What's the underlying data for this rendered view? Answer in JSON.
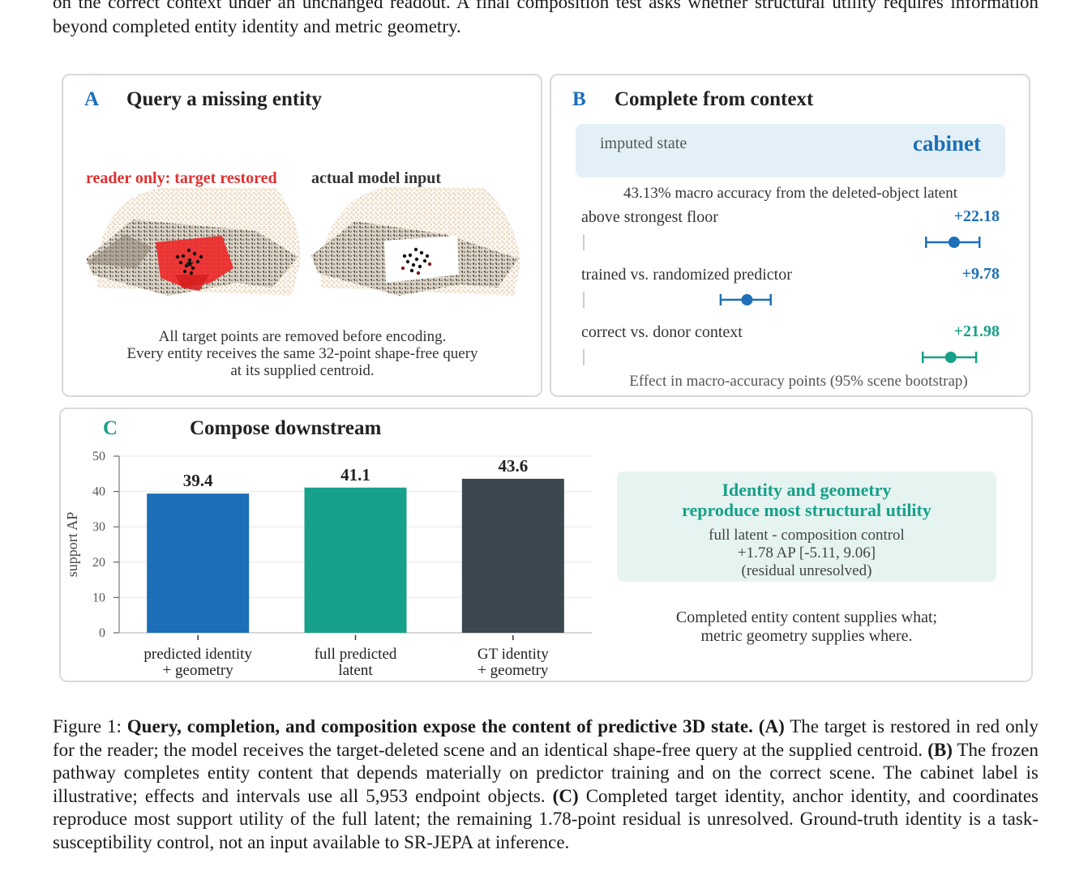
{
  "intro_text": "on the correct context under an unchanged readout. A final composition test asks whether structural utility requires information beyond completed entity identity and metric geometry.",
  "panel_a": {
    "letter": "A",
    "title": "Query a missing entity",
    "label_left": "reader only: target restored",
    "label_right": "actual model input",
    "note_lines": [
      "All target points are removed before encoding.",
      "Every entity receives the same 32-point shape-free query",
      "at its supplied centroid."
    ]
  },
  "panel_b": {
    "letter": "B",
    "title": "Complete from context",
    "imputed_label": "imputed state",
    "imputed_value": "cabinet",
    "accuracy_line": "43.13% macro accuracy from the deleted-object latent",
    "effects": [
      {
        "label": "above strongest floor",
        "value": "+22.18",
        "estimate": 22.18,
        "ci": [
          20.5,
          23.7
        ],
        "color": "#1c6fb8"
      },
      {
        "label": "trained vs. randomized predictor",
        "value": "+9.78",
        "estimate": 9.78,
        "ci": [
          8.2,
          11.2
        ],
        "color": "#1c6fb8"
      },
      {
        "label": "correct vs. donor context",
        "value": "+21.98",
        "estimate": 21.98,
        "ci": [
          20.3,
          23.5
        ],
        "color": "#17a08a"
      }
    ],
    "footer": "Effect in macro-accuracy points (95% scene bootstrap)"
  },
  "panel_c": {
    "letter": "C",
    "title": "Compose downstream",
    "callout_title_lines": [
      "Identity and geometry",
      "reproduce most structural utility"
    ],
    "callout_lines": [
      "full latent - composition control",
      "+1.78 AP [-5.11, 9.06]",
      "(residual unresolved)"
    ],
    "summary_lines": [
      "Completed entity content supplies what;",
      "metric geometry supplies where."
    ]
  },
  "chart_data": {
    "type": "bar",
    "ylabel": "support AP",
    "ylim": [
      0,
      50
    ],
    "yticks": [
      0,
      10,
      20,
      30,
      40,
      50
    ],
    "grid": true,
    "categories": [
      [
        "predicted identity",
        "+ geometry"
      ],
      [
        "full predicted",
        "latent"
      ],
      [
        "GT identity",
        "+ geometry"
      ]
    ],
    "values": [
      39.4,
      41.1,
      43.6
    ],
    "labels": [
      "39.4",
      "41.1",
      "43.6"
    ],
    "colors": [
      "#1c6fb8",
      "#17a08a",
      "#3c4850"
    ]
  },
  "caption": {
    "prefix": "Figure 1: ",
    "bold": "Query, completion, and composition expose the content of predictive 3D state.",
    "a_tag": "(A)",
    "a_text": " The target is restored in red only for the reader; the model receives the target-deleted scene and an identical shape-free query at the supplied centroid. ",
    "b_tag": "(B)",
    "b_text": " The frozen pathway completes entity content that depends materially on predictor training and on the correct scene. The cabinet label is illustrative; effects and intervals use all 5,953 endpoint objects. ",
    "c_tag": "(C)",
    "c_text": " Completed target identity, anchor identity, and coordinates reproduce most support utility of the full latent; the remaining 1.78-point residual is unresolved. Ground-truth identity is a task-susceptibility control, not an input available to SR-JEPA at inference."
  },
  "colors": {
    "blue": "#1c6fb8",
    "teal": "#17a08a",
    "red": "#e03030",
    "dark": "#3c4850",
    "imputed_bg": "#e3f0f8",
    "callout_bg": "#e6f4f1"
  }
}
